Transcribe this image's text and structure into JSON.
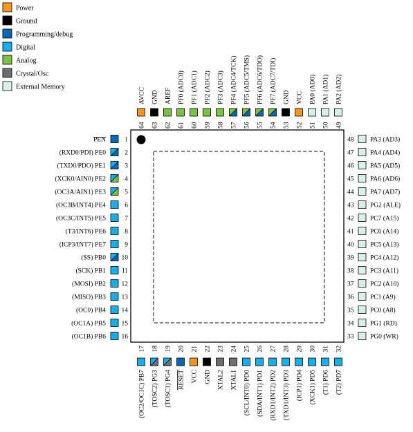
{
  "colors": {
    "power": "#f7941d",
    "ground": "#000000",
    "programming": "#0868b6",
    "digital": "#1aaee8",
    "analog": "#7cc242",
    "crystal": "#6d6e71",
    "extmem": "#d6efea"
  },
  "legend": [
    {
      "label": "Power",
      "type": "power"
    },
    {
      "label": "Ground",
      "type": "ground"
    },
    {
      "label": "Programming/debug",
      "type": "programming"
    },
    {
      "label": "Digital",
      "type": "digital"
    },
    {
      "label": "Analog",
      "type": "analog"
    },
    {
      "label": "Crystal/Osc",
      "type": "crystal"
    },
    {
      "label": "External Memory",
      "type": "extmem"
    }
  ],
  "pins_left": [
    {
      "num": "1",
      "label": "PEN",
      "over": true,
      "fill": [
        "programming"
      ]
    },
    {
      "num": "2",
      "label": "(RXD0/PDI) PE0",
      "fill": [
        "digital",
        "programming"
      ]
    },
    {
      "num": "3",
      "label": "(TXD0/PDO) PE1",
      "fill": [
        "digital",
        "programming"
      ]
    },
    {
      "num": "4",
      "label": "(XCK0/AIN0) PE2",
      "fill": [
        "digital",
        "analog"
      ]
    },
    {
      "num": "5",
      "label": "(OC3A/AIN1) PE3",
      "fill": [
        "digital",
        "analog"
      ]
    },
    {
      "num": "6",
      "label": "(OC3B/INT4) PE4",
      "fill": [
        "digital"
      ]
    },
    {
      "num": "7",
      "label": "(OC3C/INT5) PE5",
      "fill": [
        "digital"
      ]
    },
    {
      "num": "8",
      "label": "(T3/INT6) PE6",
      "fill": [
        "digital"
      ]
    },
    {
      "num": "9",
      "label": "(ICP3/INT7) PE7",
      "fill": [
        "digital"
      ]
    },
    {
      "num": "10",
      "label": "(SS) PB0",
      "fill": [
        "digital",
        "programming"
      ]
    },
    {
      "num": "11",
      "label": "(SCK) PB1",
      "fill": [
        "digital"
      ]
    },
    {
      "num": "12",
      "label": "(MOSI) PB2",
      "fill": [
        "digital"
      ]
    },
    {
      "num": "13",
      "label": "(MISO) PB3",
      "fill": [
        "digital"
      ]
    },
    {
      "num": "14",
      "label": "(OC0) PB4",
      "fill": [
        "digital"
      ]
    },
    {
      "num": "15",
      "label": "(OC1A) PB5",
      "fill": [
        "digital"
      ]
    },
    {
      "num": "16",
      "label": "(OC1B) PB6",
      "fill": [
        "digital"
      ]
    }
  ],
  "pins_bottom": [
    {
      "num": "17",
      "label": "(OC2/OC1C) PB7",
      "fill": [
        "digital"
      ]
    },
    {
      "num": "18",
      "label": "(TOSC2) PG3",
      "fill": [
        "digital",
        "crystal"
      ]
    },
    {
      "num": "19",
      "label": "(TOSC1) PG4",
      "fill": [
        "digital",
        "crystal"
      ]
    },
    {
      "num": "20",
      "label": "RESET",
      "over": true,
      "fill": [
        "programming"
      ]
    },
    {
      "num": "21",
      "label": "VCC",
      "fill": [
        "power"
      ]
    },
    {
      "num": "22",
      "label": "GND",
      "fill": [
        "ground"
      ]
    },
    {
      "num": "23",
      "label": "XTAL2",
      "fill": [
        "crystal"
      ]
    },
    {
      "num": "24",
      "label": "XTAL1",
      "fill": [
        "crystal"
      ]
    },
    {
      "num": "25",
      "label": "(SCL/INT0) PD0",
      "fill": [
        "digital"
      ]
    },
    {
      "num": "26",
      "label": "(SDA/INT1) PD1",
      "fill": [
        "digital"
      ]
    },
    {
      "num": "27",
      "label": "(RXD1/INT2) PD2",
      "fill": [
        "digital"
      ]
    },
    {
      "num": "28",
      "label": "(TXD1/INT3) PD3",
      "fill": [
        "digital"
      ]
    },
    {
      "num": "29",
      "label": "(ICP1) PD4",
      "fill": [
        "digital"
      ]
    },
    {
      "num": "30",
      "label": "(XCK1) PD5",
      "fill": [
        "digital"
      ]
    },
    {
      "num": "31",
      "label": "(T1) PD6",
      "fill": [
        "digital"
      ]
    },
    {
      "num": "32",
      "label": "(T2) PD7",
      "fill": [
        "digital"
      ]
    }
  ],
  "pins_right": [
    {
      "num": "33",
      "label": "PG0 (WR)",
      "fill": [
        "extmem"
      ]
    },
    {
      "num": "34",
      "label": "PG1 (RD)",
      "fill": [
        "extmem"
      ]
    },
    {
      "num": "35",
      "label": "PC0 (A8)",
      "fill": [
        "extmem"
      ]
    },
    {
      "num": "36",
      "label": "PC1 (A9)",
      "fill": [
        "extmem"
      ]
    },
    {
      "num": "37",
      "label": "PC2 (A10)",
      "fill": [
        "extmem"
      ]
    },
    {
      "num": "38",
      "label": "PC3 (A11)",
      "fill": [
        "extmem"
      ]
    },
    {
      "num": "39",
      "label": "PC4 (A12)",
      "fill": [
        "extmem"
      ]
    },
    {
      "num": "40",
      "label": "PC5 (A13)",
      "fill": [
        "extmem"
      ]
    },
    {
      "num": "41",
      "label": "PC6 (A14)",
      "fill": [
        "extmem"
      ]
    },
    {
      "num": "42",
      "label": "PC7 (A15)",
      "fill": [
        "extmem"
      ]
    },
    {
      "num": "43",
      "label": "PG2 (ALE)",
      "fill": [
        "extmem"
      ]
    },
    {
      "num": "44",
      "label": "PA7 (AD7)",
      "fill": [
        "extmem"
      ]
    },
    {
      "num": "45",
      "label": "PA6 (AD6)",
      "fill": [
        "extmem"
      ]
    },
    {
      "num": "46",
      "label": "PA5 (AD5)",
      "fill": [
        "extmem"
      ]
    },
    {
      "num": "47",
      "label": "PA4 (AD4)",
      "fill": [
        "extmem"
      ]
    },
    {
      "num": "48",
      "label": "PA3 (AD3)",
      "fill": [
        "extmem"
      ]
    }
  ],
  "pins_top": [
    {
      "num": "64",
      "label": "AVCC",
      "fill": [
        "power"
      ]
    },
    {
      "num": "63",
      "label": "GND",
      "fill": [
        "ground"
      ]
    },
    {
      "num": "62",
      "label": "AREF",
      "fill": [
        "analog"
      ]
    },
    {
      "num": "61",
      "label": "PF0 (ADC0)",
      "fill": [
        "analog"
      ]
    },
    {
      "num": "60",
      "label": "PF1 (ADC1)",
      "fill": [
        "analog"
      ]
    },
    {
      "num": "59",
      "label": "PF2 (ADC2)",
      "fill": [
        "analog"
      ]
    },
    {
      "num": "58",
      "label": "PF3 (ADC3)",
      "fill": [
        "analog"
      ]
    },
    {
      "num": "57",
      "label": "PF4 (ADC4/TCK)",
      "fill": [
        "analog",
        "programming"
      ]
    },
    {
      "num": "56",
      "label": "PF5 (ADC5/TMS)",
      "fill": [
        "analog",
        "programming"
      ]
    },
    {
      "num": "55",
      "label": "PF6 (ADC6/TDO)",
      "fill": [
        "analog",
        "programming"
      ]
    },
    {
      "num": "54",
      "label": "PF7 (ADC7/TDI)",
      "fill": [
        "analog",
        "programming"
      ]
    },
    {
      "num": "53",
      "label": "GND",
      "fill": [
        "ground"
      ]
    },
    {
      "num": "52",
      "label": "VCC",
      "fill": [
        "power"
      ]
    },
    {
      "num": "51",
      "label": "PA0 (AD0)",
      "fill": [
        "extmem"
      ]
    },
    {
      "num": "50",
      "label": "PA1 (AD1)",
      "fill": [
        "extmem"
      ]
    },
    {
      "num": "49",
      "label": "PA2 (AD2)",
      "fill": [
        "extmem"
      ]
    }
  ]
}
